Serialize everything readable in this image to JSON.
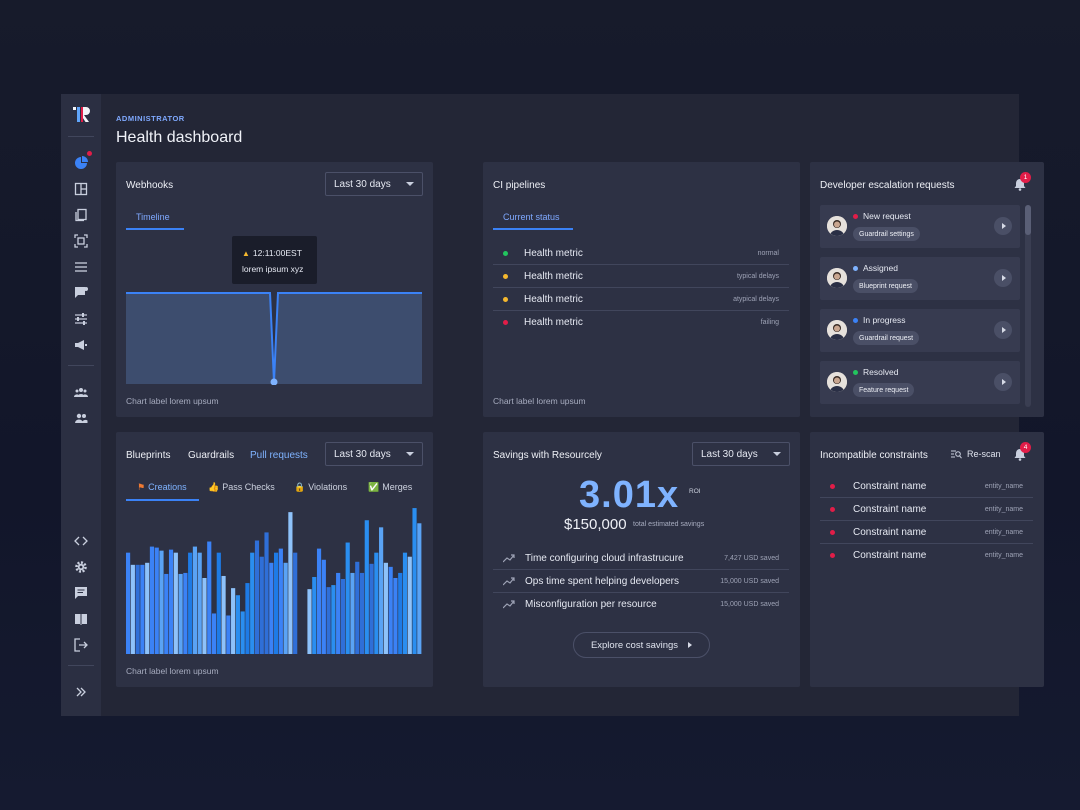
{
  "header": {
    "subtitle": "ADMINISTRATOR",
    "title": "Health dashboard"
  },
  "webhooks": {
    "title": "Webhooks",
    "range": "Last 30 days",
    "tab": "Timeline",
    "tooltip_time": "12:11:00EST",
    "tooltip_text": "lorem ipsum xyz",
    "chart_label": "Chart label lorem upsum"
  },
  "ci": {
    "title": "CI pipelines",
    "tab": "Current status",
    "rows": [
      {
        "label": "Health metric",
        "status": "normal",
        "color": "#22c55e"
      },
      {
        "label": "Health metric",
        "status": "typical delays",
        "color": "#f5b82e"
      },
      {
        "label": "Health metric",
        "status": "atypical delays",
        "color": "#f5b82e"
      },
      {
        "label": "Health metric",
        "status": "failing",
        "color": "#e11d48"
      }
    ],
    "chart_label": "Chart label lorem upsum"
  },
  "escalation": {
    "title": "Developer escalation requests",
    "badge": "1",
    "items": [
      {
        "status": "New request",
        "color": "#e11d48",
        "chip": "Guardrail settings"
      },
      {
        "status": "Assigned",
        "color": "#7fb3ff",
        "chip": "Blueprint request"
      },
      {
        "status": "In progress",
        "color": "#3b82f6",
        "chip": "Guardrail request"
      },
      {
        "status": "Resolved",
        "color": "#22c55e",
        "chip": "Feature request"
      }
    ]
  },
  "blueprints": {
    "tabs": [
      "Blueprints",
      "Guardrails",
      "Pull requests"
    ],
    "range": "Last 30 days",
    "subtabs": [
      "Creations",
      "Pass Checks",
      "Violations",
      "Merges"
    ],
    "chart_label": "Chart label lorem upsum"
  },
  "savings": {
    "title": "Savings with Resourcely",
    "range": "Last 30 days",
    "roi": "3.01x",
    "roi_label": "ROI",
    "total": "$150,000",
    "total_label": "total estimated savings",
    "rows": [
      {
        "label": "Time configuring cloud infrastrucure",
        "value": "7,427 USD saved"
      },
      {
        "label": "Ops time spent helping developers",
        "value": "15,000 USD saved"
      },
      {
        "label": "Misconfiguration per resource",
        "value": "15,000 USD saved"
      }
    ],
    "button": "Explore cost savings"
  },
  "constraints": {
    "title": "Incompatible constraints",
    "rescan": "Re-scan",
    "badge": "4",
    "rows": [
      {
        "label": "Constraint name",
        "entity": "entity_name"
      },
      {
        "label": "Constraint name",
        "entity": "entity_name"
      },
      {
        "label": "Constraint name",
        "entity": "entity_name"
      },
      {
        "label": "Constraint name",
        "entity": "entity_name"
      }
    ]
  },
  "chart_data": {
    "type": "bar",
    "series": [
      {
        "values": [
          100,
          88,
          88,
          88,
          90,
          106,
          105,
          102,
          79,
          103,
          100,
          79,
          80,
          100,
          106,
          100,
          75,
          111,
          40,
          100,
          77,
          38,
          65,
          58,
          42,
          70,
          100,
          112,
          96,
          120,
          90,
          100,
          104,
          90,
          140,
          100,
          64,
          76,
          104,
          93,
          66,
          68,
          80,
          74,
          110,
          80,
          91,
          80,
          132,
          89,
          100,
          125,
          90,
          86,
          75,
          80,
          100,
          96,
          144,
          129
        ]
      }
    ]
  }
}
